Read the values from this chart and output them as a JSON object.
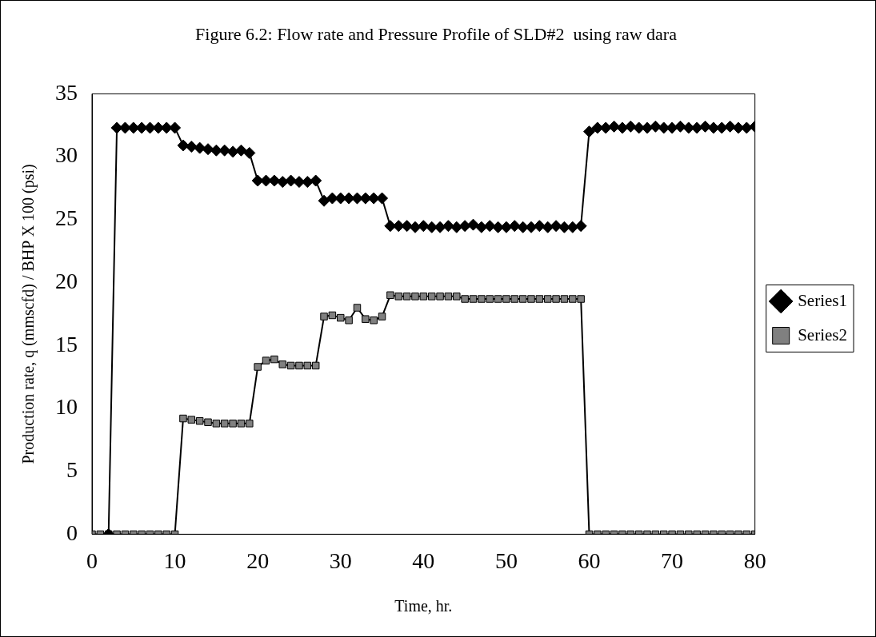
{
  "chart_data": {
    "type": "line",
    "title": "Figure 6.2: Flow rate and Pressure Profile of SLD#2  using raw dara",
    "xlabel": "Time, hr.",
    "ylabel": "Production rate, q (mmscfd) / BHP X 100 (psi)",
    "xlim": [
      0,
      80
    ],
    "xticks": [
      0,
      10,
      20,
      30,
      40,
      50,
      60,
      70,
      80
    ],
    "ylim": [
      0,
      35
    ],
    "yticks": [
      0,
      5,
      10,
      15,
      20,
      25,
      30,
      35
    ],
    "grid": false,
    "legend": "right",
    "series": [
      {
        "name": "Series1",
        "color": "#000000",
        "marker": "diamond",
        "x": [
          2,
          3,
          4,
          5,
          6,
          7,
          8,
          9,
          10,
          11,
          12,
          13,
          14,
          15,
          16,
          17,
          18,
          19,
          20,
          21,
          22,
          23,
          24,
          25,
          26,
          27,
          28,
          29,
          30,
          31,
          32,
          33,
          34,
          35,
          36,
          37,
          38,
          39,
          40,
          41,
          42,
          43,
          44,
          45,
          46,
          47,
          48,
          49,
          50,
          51,
          52,
          53,
          54,
          55,
          56,
          57,
          58,
          59,
          60,
          61,
          62,
          63,
          64,
          65,
          66,
          67,
          68,
          69,
          70,
          71,
          72,
          73,
          74,
          75,
          76,
          77,
          78,
          79,
          80
        ],
        "values": [
          0,
          32.3,
          32.3,
          32.3,
          32.3,
          32.3,
          32.3,
          32.3,
          32.3,
          30.9,
          30.8,
          30.7,
          30.6,
          30.5,
          30.5,
          30.4,
          30.5,
          30.3,
          28.1,
          28.1,
          28.1,
          28.0,
          28.1,
          28.0,
          28.0,
          28.1,
          26.5,
          26.7,
          26.7,
          26.7,
          26.7,
          26.7,
          26.7,
          26.7,
          24.5,
          24.5,
          24.5,
          24.4,
          24.5,
          24.4,
          24.4,
          24.5,
          24.4,
          24.5,
          24.6,
          24.4,
          24.5,
          24.4,
          24.4,
          24.5,
          24.4,
          24.4,
          24.5,
          24.4,
          24.5,
          24.4,
          24.4,
          24.5,
          32.0,
          32.3,
          32.3,
          32.4,
          32.3,
          32.4,
          32.3,
          32.3,
          32.4,
          32.3,
          32.3,
          32.4,
          32.3,
          32.3,
          32.4,
          32.3,
          32.3,
          32.4,
          32.3,
          32.3,
          32.4
        ]
      },
      {
        "name": "Series2",
        "color": "#808080",
        "marker": "square",
        "x": [
          0,
          1,
          2,
          3,
          4,
          5,
          6,
          7,
          8,
          9,
          10,
          11,
          12,
          13,
          14,
          15,
          16,
          17,
          18,
          19,
          20,
          21,
          22,
          23,
          24,
          25,
          26,
          27,
          28,
          29,
          30,
          31,
          32,
          33,
          34,
          35,
          36,
          37,
          38,
          39,
          40,
          41,
          42,
          43,
          44,
          45,
          46,
          47,
          48,
          49,
          50,
          51,
          52,
          53,
          54,
          55,
          56,
          57,
          58,
          59,
          60,
          61,
          62,
          63,
          64,
          65,
          66,
          67,
          68,
          69,
          70,
          71,
          72,
          73,
          74,
          75,
          76,
          77,
          78,
          79,
          80
        ],
        "values": [
          0,
          0,
          0,
          0,
          0,
          0,
          0,
          0,
          0,
          0,
          0,
          9.2,
          9.1,
          9.0,
          8.9,
          8.8,
          8.8,
          8.8,
          8.8,
          8.8,
          13.3,
          13.8,
          13.9,
          13.5,
          13.4,
          13.4,
          13.4,
          13.4,
          17.3,
          17.4,
          17.2,
          17.0,
          18.0,
          17.1,
          17.0,
          17.3,
          19.0,
          18.9,
          18.9,
          18.9,
          18.9,
          18.9,
          18.9,
          18.9,
          18.9,
          18.7,
          18.7,
          18.7,
          18.7,
          18.7,
          18.7,
          18.7,
          18.7,
          18.7,
          18.7,
          18.7,
          18.7,
          18.7,
          18.7,
          18.7,
          0,
          0,
          0,
          0,
          0,
          0,
          0,
          0,
          0,
          0,
          0,
          0,
          0,
          0,
          0,
          0,
          0,
          0,
          0,
          0,
          0
        ]
      }
    ]
  }
}
